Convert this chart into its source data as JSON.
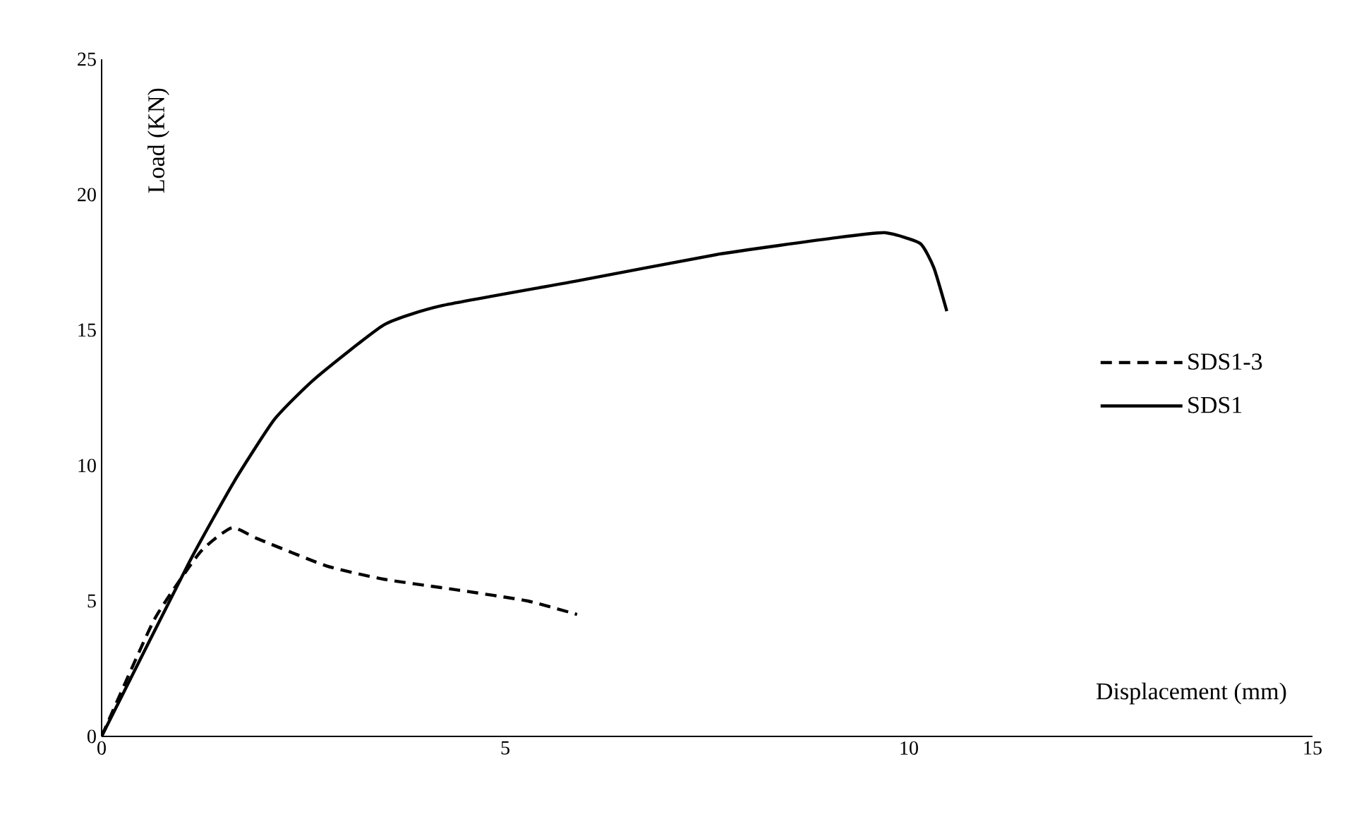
{
  "chart_data": {
    "type": "line",
    "xlabel": "Displacement (mm)",
    "ylabel": "Load (KN)",
    "xlim": [
      0,
      15
    ],
    "ylim": [
      0,
      25
    ],
    "xticks": [
      0,
      5,
      10,
      15
    ],
    "yticks": [
      0,
      5,
      10,
      15,
      20,
      25
    ],
    "grid": false,
    "legend": "right",
    "marker": "none",
    "series": [
      {
        "name": "SDS1-3",
        "color": "#000000",
        "line_style": "dashed",
        "x": [
          0,
          0.65,
          1.22,
          1.61,
          1.93,
          2.78,
          3.5,
          4.42,
          5.28,
          5.89
        ],
        "values": [
          0,
          4.3,
          6.8,
          7.7,
          7.3,
          6.3,
          5.8,
          5.4,
          5.0,
          4.5
        ]
      },
      {
        "name": "SDS1",
        "color": "#000000",
        "line_style": "solid",
        "x": [
          0,
          1.08,
          1.64,
          2.14,
          2.64,
          3.5,
          4.21,
          5.86,
          7.64,
          9.07,
          9.7,
          10.14,
          10.31,
          10.47
        ],
        "values": [
          0,
          6.4,
          9.4,
          11.7,
          13.2,
          15.2,
          15.9,
          16.8,
          17.8,
          18.4,
          18.6,
          18.2,
          17.3,
          15.7
        ]
      }
    ]
  }
}
